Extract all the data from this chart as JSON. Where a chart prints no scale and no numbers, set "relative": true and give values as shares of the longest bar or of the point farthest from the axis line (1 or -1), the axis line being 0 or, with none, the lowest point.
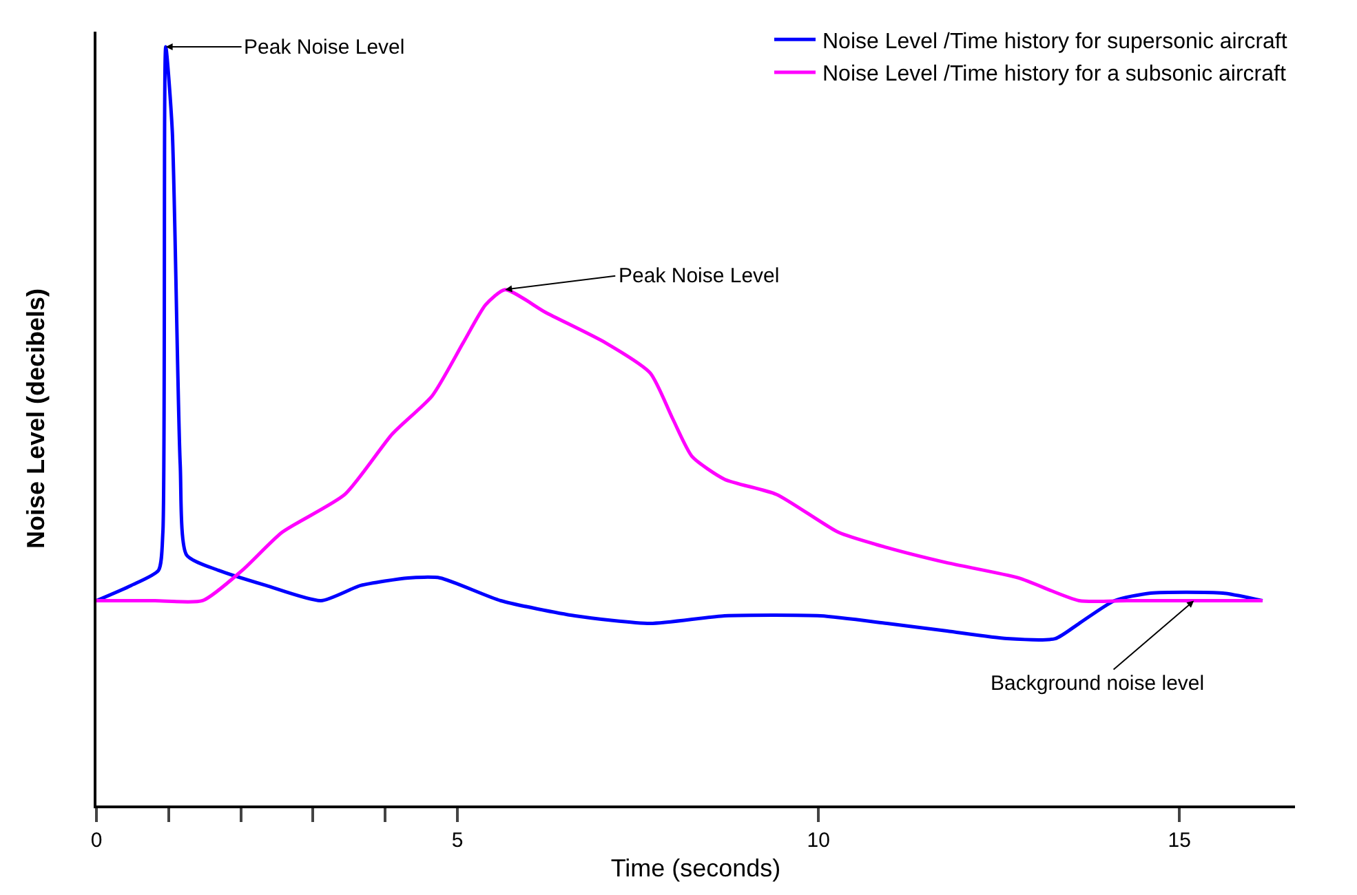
{
  "chart_data": {
    "type": "line",
    "relative": true,
    "xlabel": "Time (seconds)",
    "ylabel": "Noise Level (decibels)",
    "xlim": [
      0,
      16.6
    ],
    "xticks": [
      0,
      {
        "value": 1,
        "label": null
      },
      {
        "value": 2,
        "label": null
      },
      {
        "value": 3,
        "label": null
      },
      {
        "value": 4,
        "label": null
      },
      5,
      10,
      15
    ],
    "tick_labels": "x",
    "grid": false,
    "legend": "top right",
    "marker": "none",
    "line_style": "solid",
    "series": [
      {
        "name": "Noise Level /Time history for supersonic aircraft",
        "color": "#0000ff",
        "x": [
          0,
          0.48,
          0.86,
          0.92,
          0.96,
          1.05,
          1.16,
          1.25,
          1.69,
          2.35,
          3.11,
          3.66,
          4.32,
          4.76,
          5.6,
          6.63,
          7.67,
          8.7,
          10.03,
          10.95,
          11.78,
          12.61,
          13.28,
          13.61,
          14.1,
          14.6,
          15.6,
          16.15
        ],
        "values": [
          0.27,
          0.29,
          0.31,
          0.36,
          1,
          0.89,
          0.45,
          0.33,
          0.31,
          0.29,
          0.27,
          0.29,
          0.3,
          0.3,
          0.27,
          0.25,
          0.24,
          0.25,
          0.25,
          0.24,
          0.23,
          0.22,
          0.22,
          0.24,
          0.27,
          0.28,
          0.28,
          0.27
        ]
      },
      {
        "name": "Noise Level /Time history for a subsonic aircraft",
        "color": "#ff00ff",
        "x": [
          0,
          0.81,
          1.47,
          2.02,
          2.57,
          3.44,
          4.1,
          4.65,
          5.08,
          5.39,
          5.66,
          6.22,
          7.05,
          7.67,
          7.98,
          8.25,
          8.7,
          9.42,
          10.28,
          10.95,
          11.78,
          12.77,
          13.61,
          14.27,
          15.1,
          16.15
        ],
        "values": [
          0.27,
          0.27,
          0.27,
          0.31,
          0.36,
          0.41,
          0.49,
          0.54,
          0.61,
          0.66,
          0.68,
          0.65,
          0.61,
          0.57,
          0.51,
          0.46,
          0.43,
          0.41,
          0.36,
          0.34,
          0.32,
          0.3,
          0.27,
          0.27,
          0.27,
          0.27
        ]
      }
    ],
    "annotations": [
      {
        "text": "Peak Noise Level",
        "x": 0.96,
        "y": 1
      },
      {
        "text": "Peak Noise Level",
        "x": 5.66,
        "y": 0.68
      },
      {
        "text": "Background noise level",
        "x": 15.2,
        "y": 0.27
      }
    ]
  }
}
